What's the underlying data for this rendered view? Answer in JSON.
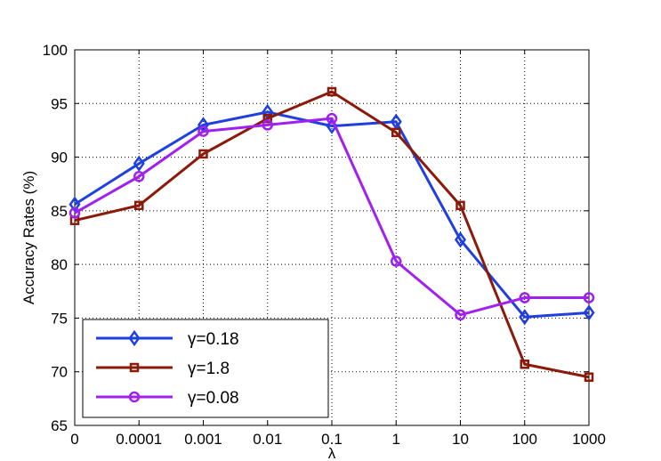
{
  "chart_data": {
    "type": "line",
    "xlabel": "λ",
    "ylabel": "Accuracy Rates (%)",
    "categories": [
      "0",
      "0.0001",
      "0.001",
      "0.01",
      "0.1",
      "1",
      "10",
      "100",
      "1000"
    ],
    "ylim": [
      65,
      100
    ],
    "yticks": [
      65,
      70,
      75,
      80,
      85,
      90,
      95,
      100
    ],
    "grid": true,
    "legend_position": "bottom-left",
    "series": [
      {
        "name": "γ=0.18",
        "color": "#1f3fe0",
        "marker": "diamond",
        "values": [
          85.6,
          89.4,
          93.0,
          94.2,
          92.9,
          93.3,
          82.3,
          75.1,
          75.5
        ]
      },
      {
        "name": "γ=1.8",
        "color": "#8b1a0a",
        "marker": "square",
        "values": [
          84.1,
          85.5,
          90.3,
          93.6,
          96.1,
          92.3,
          85.5,
          70.7,
          69.5
        ]
      },
      {
        "name": "γ=0.08",
        "color": "#a020f0",
        "marker": "circle",
        "values": [
          84.8,
          88.2,
          92.4,
          93.0,
          93.6,
          80.3,
          75.3,
          76.9,
          76.9
        ]
      }
    ]
  }
}
